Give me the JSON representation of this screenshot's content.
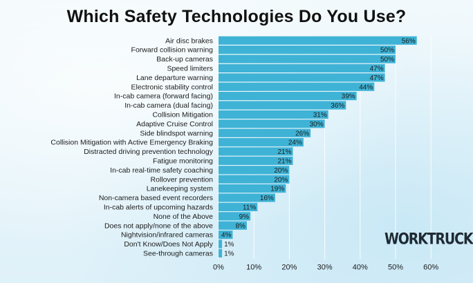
{
  "title": "Which Safety Technologies Do You Use?",
  "logo_text": "WORKTRUCK",
  "chart_data": {
    "type": "bar",
    "orientation": "horizontal",
    "title": "Which Safety Technologies Do You Use?",
    "xlim": [
      0,
      60
    ],
    "x_ticks": [
      "0%",
      "10%",
      "20%",
      "30%",
      "40%",
      "50%",
      "60%"
    ],
    "bar_color": "#3fb3d6",
    "value_suffix": "%",
    "grid": "vertical",
    "categories": [
      "Air disc brakes",
      "Forward collision warning",
      "Back-up cameras",
      "Speed limiters",
      "Lane departure warning",
      "Electronic stability control",
      "In-cab camera (forward facing)",
      "In-cab camera (dual facing)",
      "Collision Mitigation",
      "Adaptive Cruise Control",
      "Side blindspot warning",
      "Collision Mitigation with Active Emergency Braking",
      "Distracted driving prevention technology",
      "Fatigue monitoring",
      "In-cab real-time safety coaching",
      "Rollover prevention",
      "Lanekeeping system",
      "Non-camera based event recorders",
      "In-cab alerts of upcoming hazards",
      "None of the Above",
      "Does not apply/none of the above",
      "Nightvision/infrared cameras",
      "Don't Know/Does Not Apply",
      "See-through cameras"
    ],
    "values": [
      56,
      50,
      50,
      47,
      47,
      44,
      39,
      36,
      31,
      30,
      26,
      24,
      21,
      21,
      20,
      20,
      19,
      16,
      11,
      9,
      8,
      4,
      1,
      1
    ]
  }
}
